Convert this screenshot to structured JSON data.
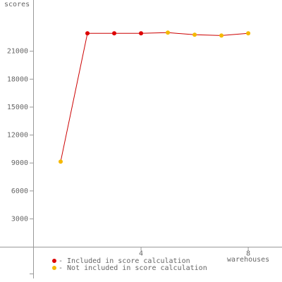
{
  "chart_data": {
    "type": "line",
    "y_label": "scores",
    "x_label": "warehouses",
    "x": [
      1,
      2,
      3,
      4,
      5,
      6,
      7,
      8
    ],
    "values": [
      9150,
      22920,
      22920,
      22920,
      23000,
      22770,
      22690,
      22920
    ],
    "included": [
      false,
      true,
      true,
      true,
      false,
      false,
      false,
      false
    ],
    "line_color": "#cc0000",
    "legend": [
      {
        "label": "- Included in score calculation",
        "color": "#dd0000"
      },
      {
        "label": "- Not included in score calculation",
        "color": "#f5b800"
      }
    ],
    "xlim": [
      0,
      9.26
    ],
    "xticks": [
      4,
      8
    ],
    "ylim": [
      -3400,
      26500
    ],
    "yticks": [
      3000,
      6000,
      9000,
      12000,
      15000,
      18000,
      21000
    ]
  }
}
